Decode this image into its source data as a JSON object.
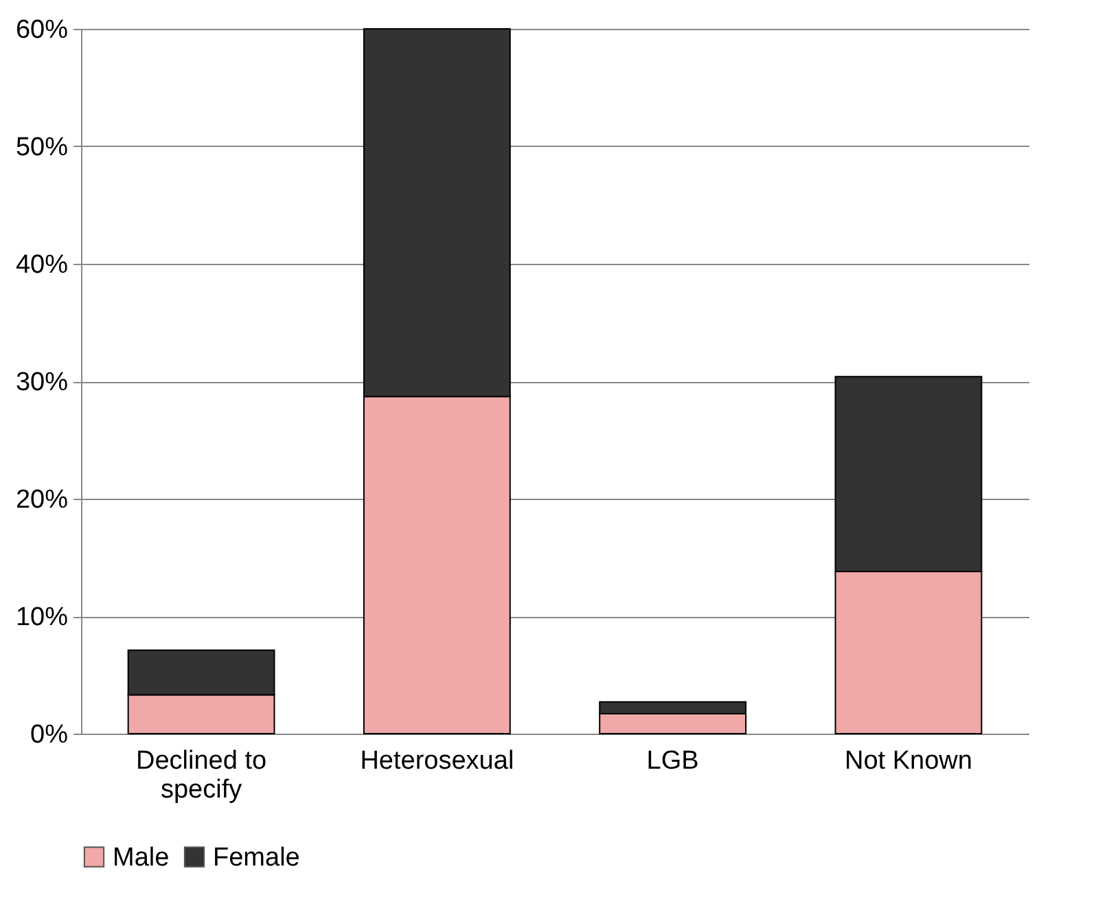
{
  "chart_data": {
    "type": "bar",
    "stacked": true,
    "categories": [
      "Declined to specify",
      "Heterosexual",
      "LGB",
      "Not Known"
    ],
    "series": [
      {
        "name": "Male",
        "color": "#f0a8a8",
        "values": [
          3.3,
          28.7,
          1.7,
          13.8
        ]
      },
      {
        "name": "Female",
        "color": "#333333",
        "values": [
          3.8,
          31.3,
          1.0,
          16.6
        ]
      }
    ],
    "ylim": [
      0,
      60
    ],
    "yticks": [
      {
        "value": 0,
        "label": "0%"
      },
      {
        "value": 10,
        "label": "10%"
      },
      {
        "value": 20,
        "label": "20%"
      },
      {
        "value": 30,
        "label": "30%"
      },
      {
        "value": 40,
        "label": "40%"
      },
      {
        "value": 50,
        "label": "50%"
      },
      {
        "value": 60,
        "label": "60%"
      }
    ],
    "grid": "y",
    "legend": "bottom"
  }
}
